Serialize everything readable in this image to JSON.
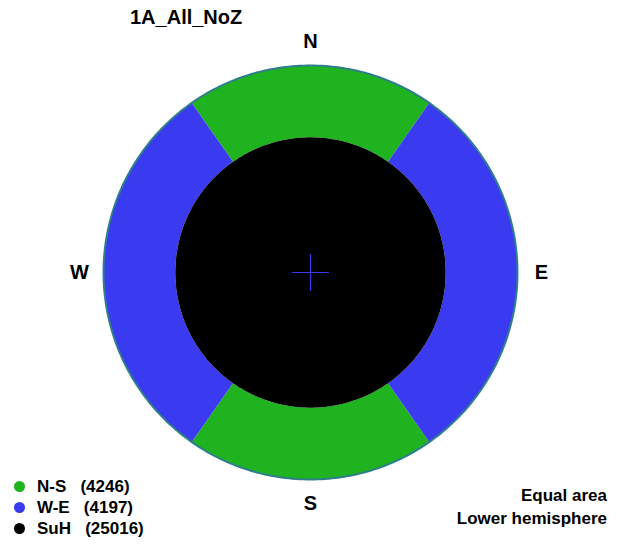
{
  "chart_data": {
    "type": "stereonet",
    "title": "1A_All_NoZ",
    "projection": "Equal area",
    "hemisphere": "Lower hemisphere",
    "directions": [
      {
        "label": "N",
        "azimuth": 0
      },
      {
        "label": "E",
        "azimuth": 90
      },
      {
        "label": "S",
        "azimuth": 180
      },
      {
        "label": "W",
        "azimuth": 270
      }
    ],
    "legend": "bottom-left",
    "series": [
      {
        "name": "N-S",
        "count": 4246,
        "color": "#1fb41f",
        "regions": [
          {
            "azimuth": [
              325,
              35
            ],
            "plunge": [
              0,
              35
            ]
          },
          {
            "azimuth": [
              145,
              215
            ],
            "plunge": [
              0,
              35
            ]
          }
        ]
      },
      {
        "name": "W-E",
        "count": 4197,
        "color": "#3a3af0",
        "regions": [
          {
            "azimuth": [
              35,
              145
            ],
            "plunge": [
              0,
              35
            ]
          },
          {
            "azimuth": [
              215,
              325
            ],
            "plunge": [
              0,
              35
            ]
          }
        ]
      },
      {
        "name": "SuH",
        "count": 25016,
        "color": "#000000",
        "regions": [
          {
            "azimuth": [
              0,
              360
            ],
            "plunge": [
              35,
              90
            ]
          }
        ]
      }
    ]
  }
}
